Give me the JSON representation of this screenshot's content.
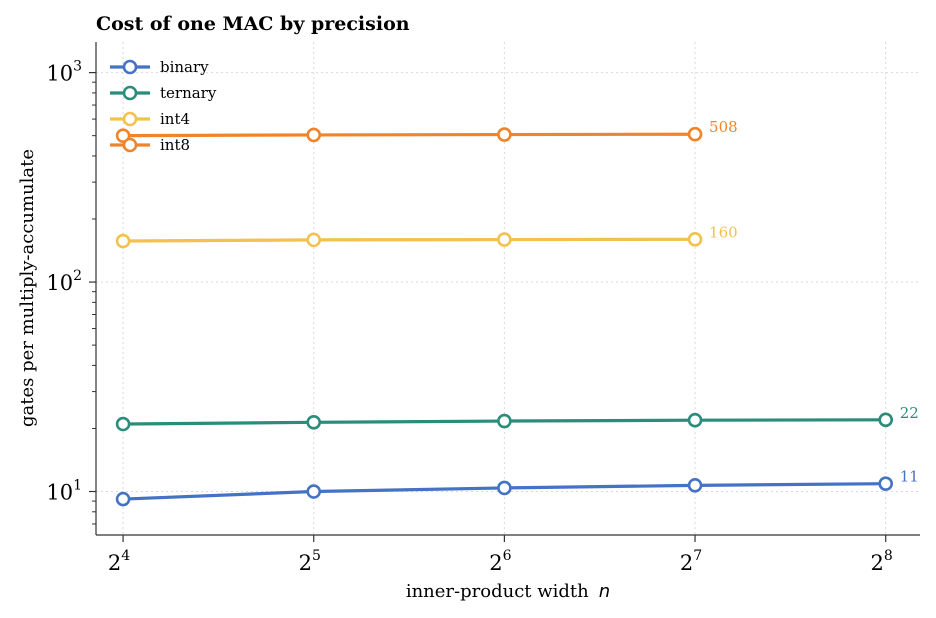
{
  "chart_data": {
    "type": "line",
    "title": "Cost of one MAC by precision",
    "xlabel": "inner-product width",
    "xlabel_var": "n",
    "ylabel": "gates per multiply-accumulate",
    "x_scale": "log2",
    "y_scale": "log10",
    "x": [
      16,
      32,
      64,
      128,
      256
    ],
    "x_tick_labels": [
      {
        "base": "2",
        "exp": "4"
      },
      {
        "base": "2",
        "exp": "5"
      },
      {
        "base": "2",
        "exp": "6"
      },
      {
        "base": "2",
        "exp": "7"
      },
      {
        "base": "2",
        "exp": "8"
      }
    ],
    "xlim": [
      14.5,
      290
    ],
    "ylim": [
      6.2,
      1400
    ],
    "y_tick_labels": [
      {
        "value": 10,
        "base": "10",
        "exp": "1"
      },
      {
        "value": 100,
        "base": "10",
        "exp": "2"
      },
      {
        "value": 1000,
        "base": "10",
        "exp": "3"
      }
    ],
    "grid": true,
    "legend_position": "top-left",
    "series": [
      {
        "name": "binary",
        "color": "#4472c4",
        "x": [
          16,
          32,
          64,
          128,
          256
        ],
        "values": [
          9.2,
          10.0,
          10.4,
          10.7,
          10.9
        ],
        "end_label": "11"
      },
      {
        "name": "ternary",
        "color": "#2a8c7a",
        "x": [
          16,
          32,
          64,
          128,
          256
        ],
        "values": [
          21.0,
          21.4,
          21.7,
          21.9,
          22.0
        ],
        "end_label": "22"
      },
      {
        "name": "int4",
        "color": "#f2c14e",
        "x": [
          16,
          32,
          64,
          128
        ],
        "values": [
          157,
          159,
          159.5,
          160
        ],
        "end_label": "160"
      },
      {
        "name": "int8",
        "color": "#f0842a",
        "x": [
          16,
          32,
          64,
          128
        ],
        "values": [
          500,
          504,
          506,
          508
        ],
        "end_label": "508"
      }
    ]
  }
}
